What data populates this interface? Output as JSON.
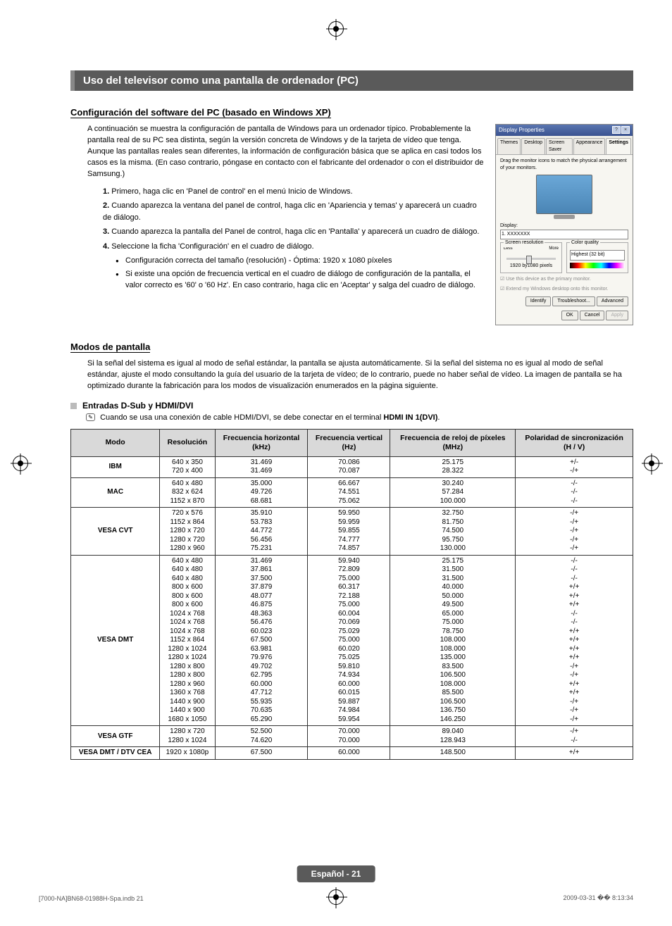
{
  "main_title": "Uso del televisor como una pantalla de ordenador (PC)",
  "config": {
    "title": "Configuración del software del PC (basado en Windows XP)",
    "intro": "A continuación se muestra la configuración de pantalla de Windows para un ordenador típico. Probablemente la pantalla real de su PC sea distinta, según la versión concreta de Windows y de la tarjeta de vídeo que tenga. Aunque las pantallas reales sean diferentes, la información de configuración básica que se aplica en casi todos los casos es la misma. (En caso contrario, póngase en contacto con el fabricante del ordenador o con el distribuidor de Samsung.)",
    "steps": [
      "Primero, haga clic en 'Panel de control' en el menú Inicio de Windows.",
      "Cuando aparezca la ventana del panel de control, haga clic en 'Apariencia y temas' y aparecerá un cuadro de diálogo.",
      "Cuando aparezca la pantalla del Panel de control, haga clic en 'Pantalla' y aparecerá un cuadro de diálogo.",
      "Seleccione la ficha 'Configuración' en el cuadro de diálogo."
    ],
    "bullets": [
      "Configuración correcta del tamaño (resolución) - Óptima: 1920 x 1080 píxeles",
      "Si existe una opción de frecuencia vertical en el cuadro de diálogo de configuración de la pantalla, el valor correcto es '60' o '60 Hz'. En caso contrario, haga clic en 'Aceptar' y salga del cuadro de diálogo."
    ]
  },
  "screenshot": {
    "title": "Display Properties",
    "tabs": [
      "Themes",
      "Desktop",
      "Screen Saver",
      "Appearance",
      "Settings"
    ],
    "active_tab": "Settings",
    "hint": "Drag the monitor icons to match the physical arrangement of your monitors.",
    "display_label": "Display:",
    "display_value": "1. XXXXXXX",
    "res_group": "Screen resolution",
    "res_less": "Less",
    "res_more": "More",
    "res_value": "1920 by1080 pixels",
    "cq_group": "Color quality",
    "cq_value": "Highest (32 bit)",
    "check1": "Use this device as the primary monitor.",
    "check2": "Extend my Windows desktop onto this monitor.",
    "btn_identify": "Identify",
    "btn_trouble": "Troubleshoot...",
    "btn_adv": "Advanced",
    "btn_ok": "OK",
    "btn_cancel": "Cancel",
    "btn_apply": "Apply"
  },
  "modes": {
    "title": "Modos de pantalla",
    "intro": "Si la señal del sistema es igual al modo de señal estándar, la pantalla se ajusta automáticamente. Si la señal del sistema no es igual al modo de señal estándar, ajuste el modo consultando la guía del usuario de la tarjeta de vídeo; de lo contrario, puede no haber señal de vídeo. La imagen de pantalla se ha optimizado durante la fabricación para los modos de visualización enumerados en la página siguiente.",
    "sub_heading": "Entradas D-Sub y HDMI/DVI",
    "note_prefix": "Cuando se usa una conexión de cable HDMI/DVI, se debe conectar en el terminal ",
    "note_bold": "HDMI IN 1(DVI)",
    "note_suffix": "."
  },
  "table": {
    "headers": [
      "Modo",
      "Resolución",
      "Frecuencia horizontal (kHz)",
      "Frecuencia vertical (Hz)",
      "Frecuencia de reloj de píxeles (MHz)",
      "Polaridad de sincronización (H / V)"
    ],
    "rows": [
      {
        "mode": "IBM",
        "res": [
          "640 x 350",
          "720 x 400"
        ],
        "h": [
          "31.469",
          "31.469"
        ],
        "v": [
          "70.086",
          "70.087"
        ],
        "p": [
          "25.175",
          "28.322"
        ],
        "s": [
          "+/-",
          "-/+"
        ]
      },
      {
        "mode": "MAC",
        "res": [
          "640 x 480",
          "832 x 624",
          "1152 x 870"
        ],
        "h": [
          "35.000",
          "49.726",
          "68.681"
        ],
        "v": [
          "66.667",
          "74.551",
          "75.062"
        ],
        "p": [
          "30.240",
          "57.284",
          "100.000"
        ],
        "s": [
          "-/-",
          "-/-",
          "-/-"
        ]
      },
      {
        "mode": "VESA CVT",
        "res": [
          "720 x 576",
          "1152 x 864",
          "1280 x 720",
          "1280 x 720",
          "1280 x 960"
        ],
        "h": [
          "35.910",
          "53.783",
          "44.772",
          "56.456",
          "75.231"
        ],
        "v": [
          "59.950",
          "59.959",
          "59.855",
          "74.777",
          "74.857"
        ],
        "p": [
          "32.750",
          "81.750",
          "74.500",
          "95.750",
          "130.000"
        ],
        "s": [
          "-/+",
          "-/+",
          "-/+",
          "-/+",
          "-/+"
        ]
      },
      {
        "mode": "VESA DMT",
        "res": [
          "640 x 480",
          "640 x 480",
          "640 x 480",
          "800 x 600",
          "800 x 600",
          "800 x 600",
          "1024 x 768",
          "1024 x 768",
          "1024 x 768",
          "1152 x 864",
          "1280 x 1024",
          "1280 x 1024",
          "1280 x 800",
          "1280 x 800",
          "1280 x 960",
          "1360 x 768",
          "1440 x 900",
          "1440 x 900",
          "1680 x 1050"
        ],
        "h": [
          "31.469",
          "37.861",
          "37.500",
          "37.879",
          "48.077",
          "46.875",
          "48.363",
          "56.476",
          "60.023",
          "67.500",
          "63.981",
          "79.976",
          "49.702",
          "62.795",
          "60.000",
          "47.712",
          "55.935",
          "70.635",
          "65.290"
        ],
        "v": [
          "59.940",
          "72.809",
          "75.000",
          "60.317",
          "72.188",
          "75.000",
          "60.004",
          "70.069",
          "75.029",
          "75.000",
          "60.020",
          "75.025",
          "59.810",
          "74.934",
          "60.000",
          "60.015",
          "59.887",
          "74.984",
          "59.954"
        ],
        "p": [
          "25.175",
          "31.500",
          "31.500",
          "40.000",
          "50.000",
          "49.500",
          "65.000",
          "75.000",
          "78.750",
          "108.000",
          "108.000",
          "135.000",
          "83.500",
          "106.500",
          "108.000",
          "85.500",
          "106.500",
          "136.750",
          "146.250"
        ],
        "s": [
          "-/-",
          "-/-",
          "-/-",
          "+/+",
          "+/+",
          "+/+",
          "-/-",
          "-/-",
          "+/+",
          "+/+",
          "+/+",
          "+/+",
          "-/+",
          "-/+",
          "+/+",
          "+/+",
          "-/+",
          "-/+",
          "-/+"
        ]
      },
      {
        "mode": "VESA GTF",
        "res": [
          "1280 x 720",
          "1280 x 1024"
        ],
        "h": [
          "52.500",
          "74.620"
        ],
        "v": [
          "70.000",
          "70.000"
        ],
        "p": [
          "89.040",
          "128.943"
        ],
        "s": [
          "-/+",
          "-/-"
        ]
      },
      {
        "mode": "VESA DMT / DTV CEA",
        "res": [
          "1920 x 1080p"
        ],
        "h": [
          "67.500"
        ],
        "v": [
          "60.000"
        ],
        "p": [
          "148.500"
        ],
        "s": [
          "+/+"
        ]
      }
    ]
  },
  "footer": {
    "badge": "Español - 21",
    "left": "[7000-NA]BN68-01988H-Spa.indb   21",
    "right": "2009-03-31   �� 8:13:34"
  }
}
